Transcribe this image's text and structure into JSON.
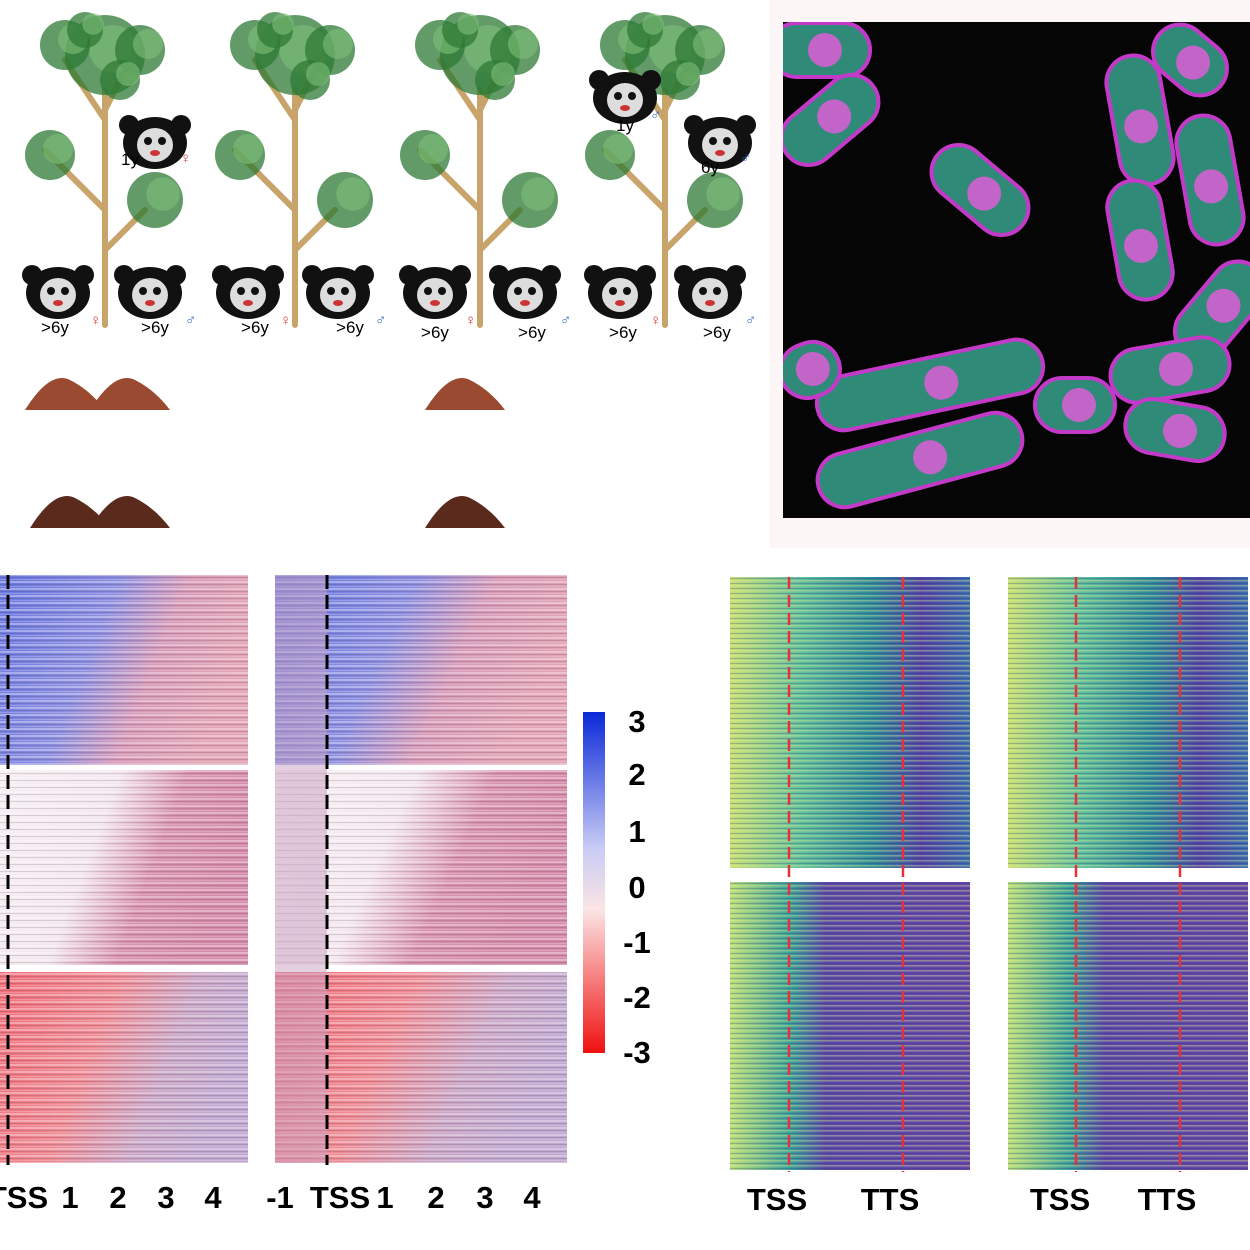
{
  "illustration": {
    "panels": [
      {
        "lemurs": [
          {
            "age": "1y",
            "sex": "♀"
          },
          {
            "age": ">6y",
            "sex": "♀"
          },
          {
            "age": ">6y",
            "sex": "♂"
          }
        ]
      },
      {
        "lemurs": [
          {
            "age": ">6y",
            "sex": "♀"
          },
          {
            "age": ">6y",
            "sex": "♂"
          }
        ]
      },
      {
        "lemurs": [
          {
            "age": ">6y",
            "sex": "♀"
          },
          {
            "age": ">6y",
            "sex": "♂"
          }
        ]
      },
      {
        "lemurs": [
          {
            "age": "1y",
            "sex": "♂"
          },
          {
            "age": "6y",
            "sex": "♂"
          },
          {
            "age": ">6y",
            "sex": "♀"
          },
          {
            "age": ">6y",
            "sex": "♂"
          }
        ]
      }
    ]
  },
  "heatmap_left": {
    "panel_a_labels": [
      "TSS",
      "1",
      "2",
      "3",
      "4"
    ],
    "panel_b_labels": [
      "-1",
      "TSS",
      "1",
      "2",
      "3",
      "4"
    ],
    "colorbar_labels": [
      "3",
      "2",
      "1",
      "0",
      "-1",
      "-2",
      "-3"
    ]
  },
  "heatmap_right": {
    "panel_a_labels": [
      "TSS",
      "TTS"
    ],
    "panel_b_labels": [
      "TSS",
      "TTS"
    ]
  }
}
